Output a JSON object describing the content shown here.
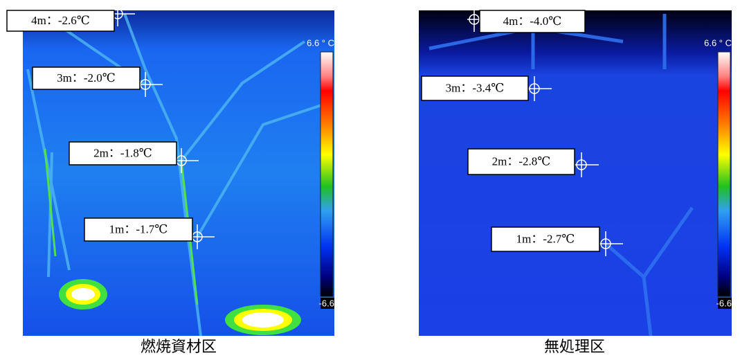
{
  "panels": [
    {
      "caption": "燃焼資材区",
      "scale": {
        "top_label": "6.6 ° C",
        "bottom_label": "-6.6"
      },
      "points": [
        {
          "label": "4m：-2.6℃"
        },
        {
          "label": "3m：-2.0℃"
        },
        {
          "label": "2m：-1.8℃"
        },
        {
          "label": "1m：-1.7℃"
        }
      ]
    },
    {
      "caption": "無処理区",
      "scale": {
        "top_label": "6.6 ° C",
        "bottom_label": "-6.6"
      },
      "points": [
        {
          "label": "4m：-4.0℃"
        },
        {
          "label": "3m：-3.4℃"
        },
        {
          "label": "2m：-2.8℃"
        },
        {
          "label": "1m：-2.7℃"
        }
      ]
    }
  ]
}
